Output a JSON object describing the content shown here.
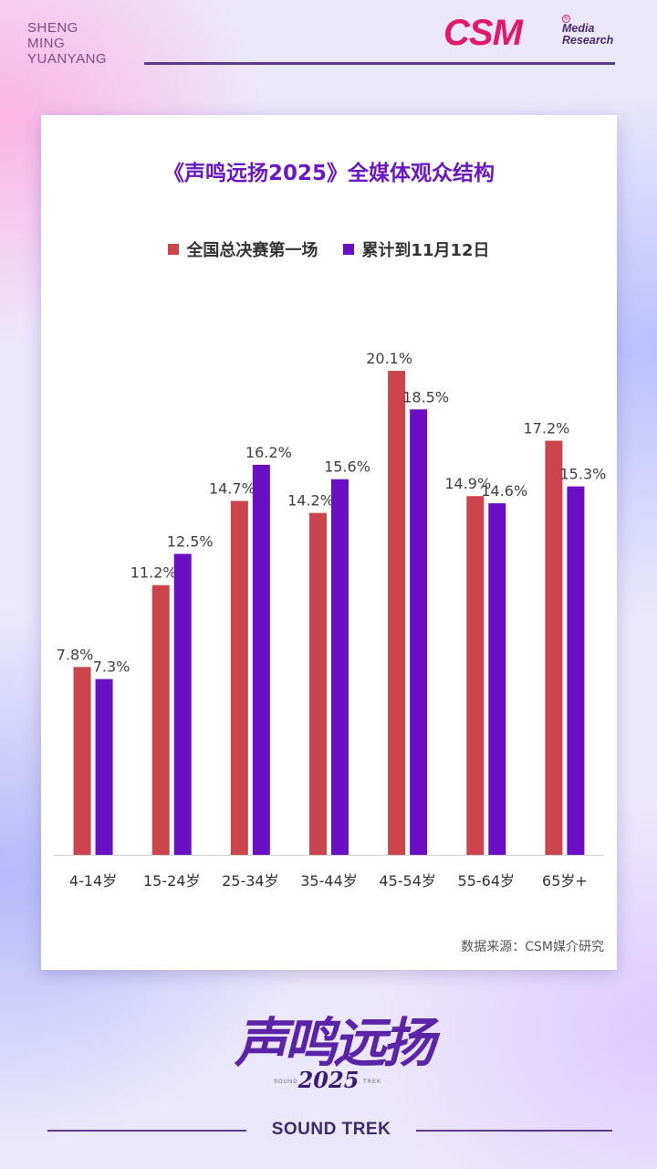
{
  "brand": {
    "lines": [
      "SHENG",
      "MING",
      "YUANYANG"
    ],
    "csm_word": "CSM",
    "csm_reg": "®",
    "csm_sub_1": "Media",
    "csm_sub_2": "Research"
  },
  "chart_data": {
    "type": "bar",
    "title": "《声鸣远扬2025》全媒体观众结构",
    "categories": [
      "4-14岁",
      "15-24岁",
      "25-34岁",
      "35-44岁",
      "45-54岁",
      "55-64岁",
      "65岁+"
    ],
    "series": [
      {
        "name": "全国总决赛第一场",
        "values": [
          7.8,
          11.2,
          14.7,
          14.2,
          20.1,
          14.9,
          17.2
        ],
        "color": "#cc444c"
      },
      {
        "name": "累计到11月12日",
        "values": [
          7.3,
          12.5,
          16.2,
          15.6,
          18.5,
          14.6,
          15.3
        ],
        "color": "#6a0fc4"
      }
    ],
    "value_suffix": "%",
    "ylim": [
      0,
      22
    ],
    "grid": false,
    "legend_position": "top",
    "source": "数据来源：CSM媒介研究"
  },
  "footer": {
    "script_title": "声鸣远扬",
    "year": "2025",
    "small_left": "SOUND",
    "small_right": "TREK",
    "subtitle": "SOUND TREK"
  }
}
